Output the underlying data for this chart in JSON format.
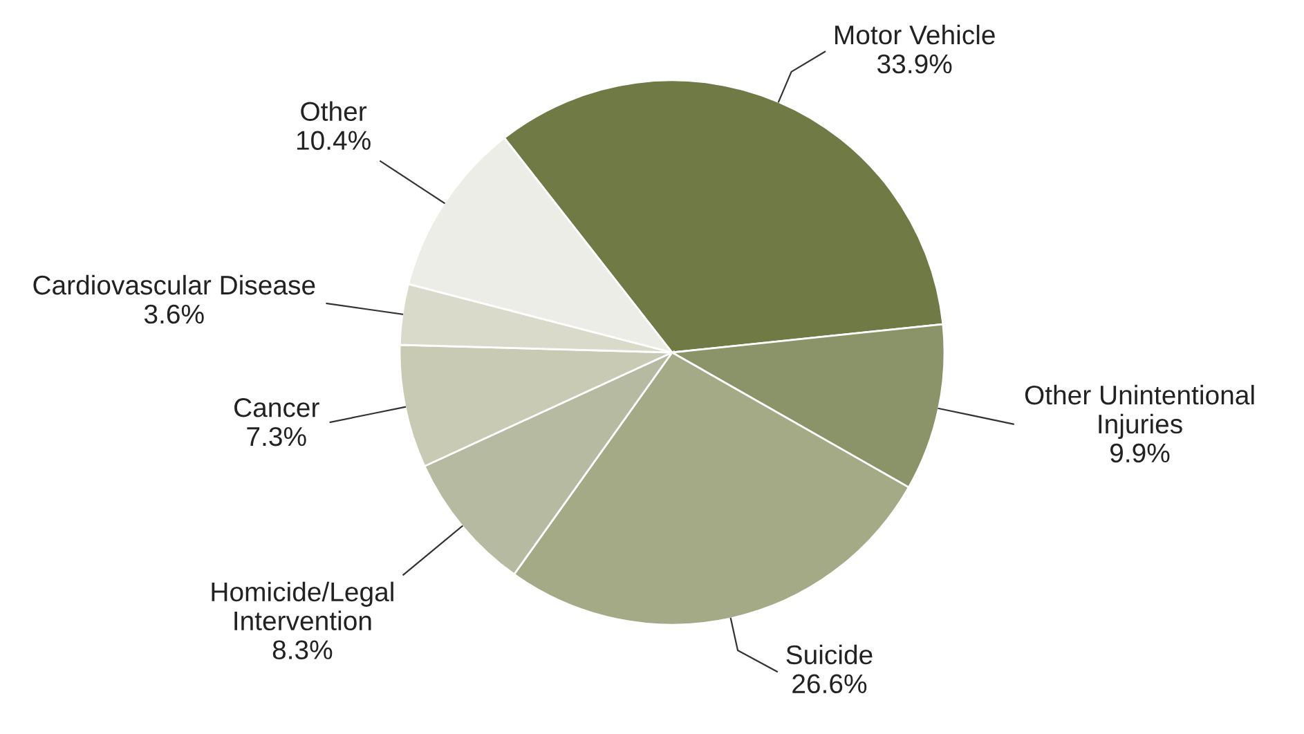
{
  "chart_data": {
    "type": "pie",
    "categories": [
      "Motor Vehicle",
      "Other Unintentional\nInjuries",
      "Suicide",
      "Homicide/Legal\nIntervention",
      "Cancer",
      "Cardiovascular Disease",
      "Other"
    ],
    "values": [
      33.9,
      9.9,
      26.6,
      8.3,
      7.3,
      3.6,
      10.4
    ],
    "value_labels": [
      "33.9%",
      "9.9%",
      "26.6%",
      "8.3%",
      "7.3%",
      "3.6%",
      "10.4%"
    ],
    "colors": [
      "#6f7a44",
      "#8a9468",
      "#a3aa85",
      "#b6baa0",
      "#c8cab3",
      "#d9dac9",
      "#ecede6"
    ],
    "legend": false
  }
}
